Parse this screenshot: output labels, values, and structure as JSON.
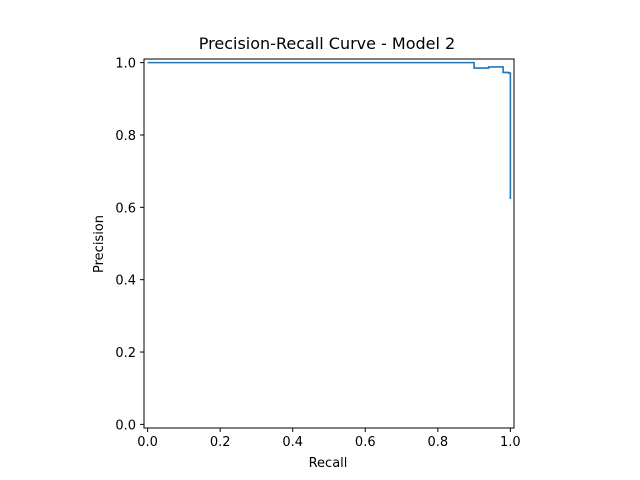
{
  "chart_data": {
    "type": "line",
    "title": "Precision-Recall Curve - Model 2",
    "xlabel": "Recall",
    "ylabel": "Precision",
    "xlim": [
      -0.01,
      1.01
    ],
    "ylim": [
      -0.01,
      1.01
    ],
    "xticks": [
      "0.0",
      "0.2",
      "0.4",
      "0.6",
      "0.8",
      "1.0"
    ],
    "yticks": [
      "0.0",
      "0.2",
      "0.4",
      "0.6",
      "0.8",
      "1.0"
    ],
    "grid": false,
    "series": [
      {
        "color": "#1f77b4",
        "drawstyle": "steps",
        "x": [
          0.0,
          0.5,
          0.9,
          0.9,
          0.94,
          0.94,
          0.98,
          0.98,
          0.995,
          0.995,
          1.0,
          1.0
        ],
        "y": [
          1.0,
          1.0,
          1.0,
          0.985,
          0.985,
          0.988,
          0.988,
          0.973,
          0.973,
          0.971,
          0.971,
          0.623
        ]
      }
    ]
  }
}
